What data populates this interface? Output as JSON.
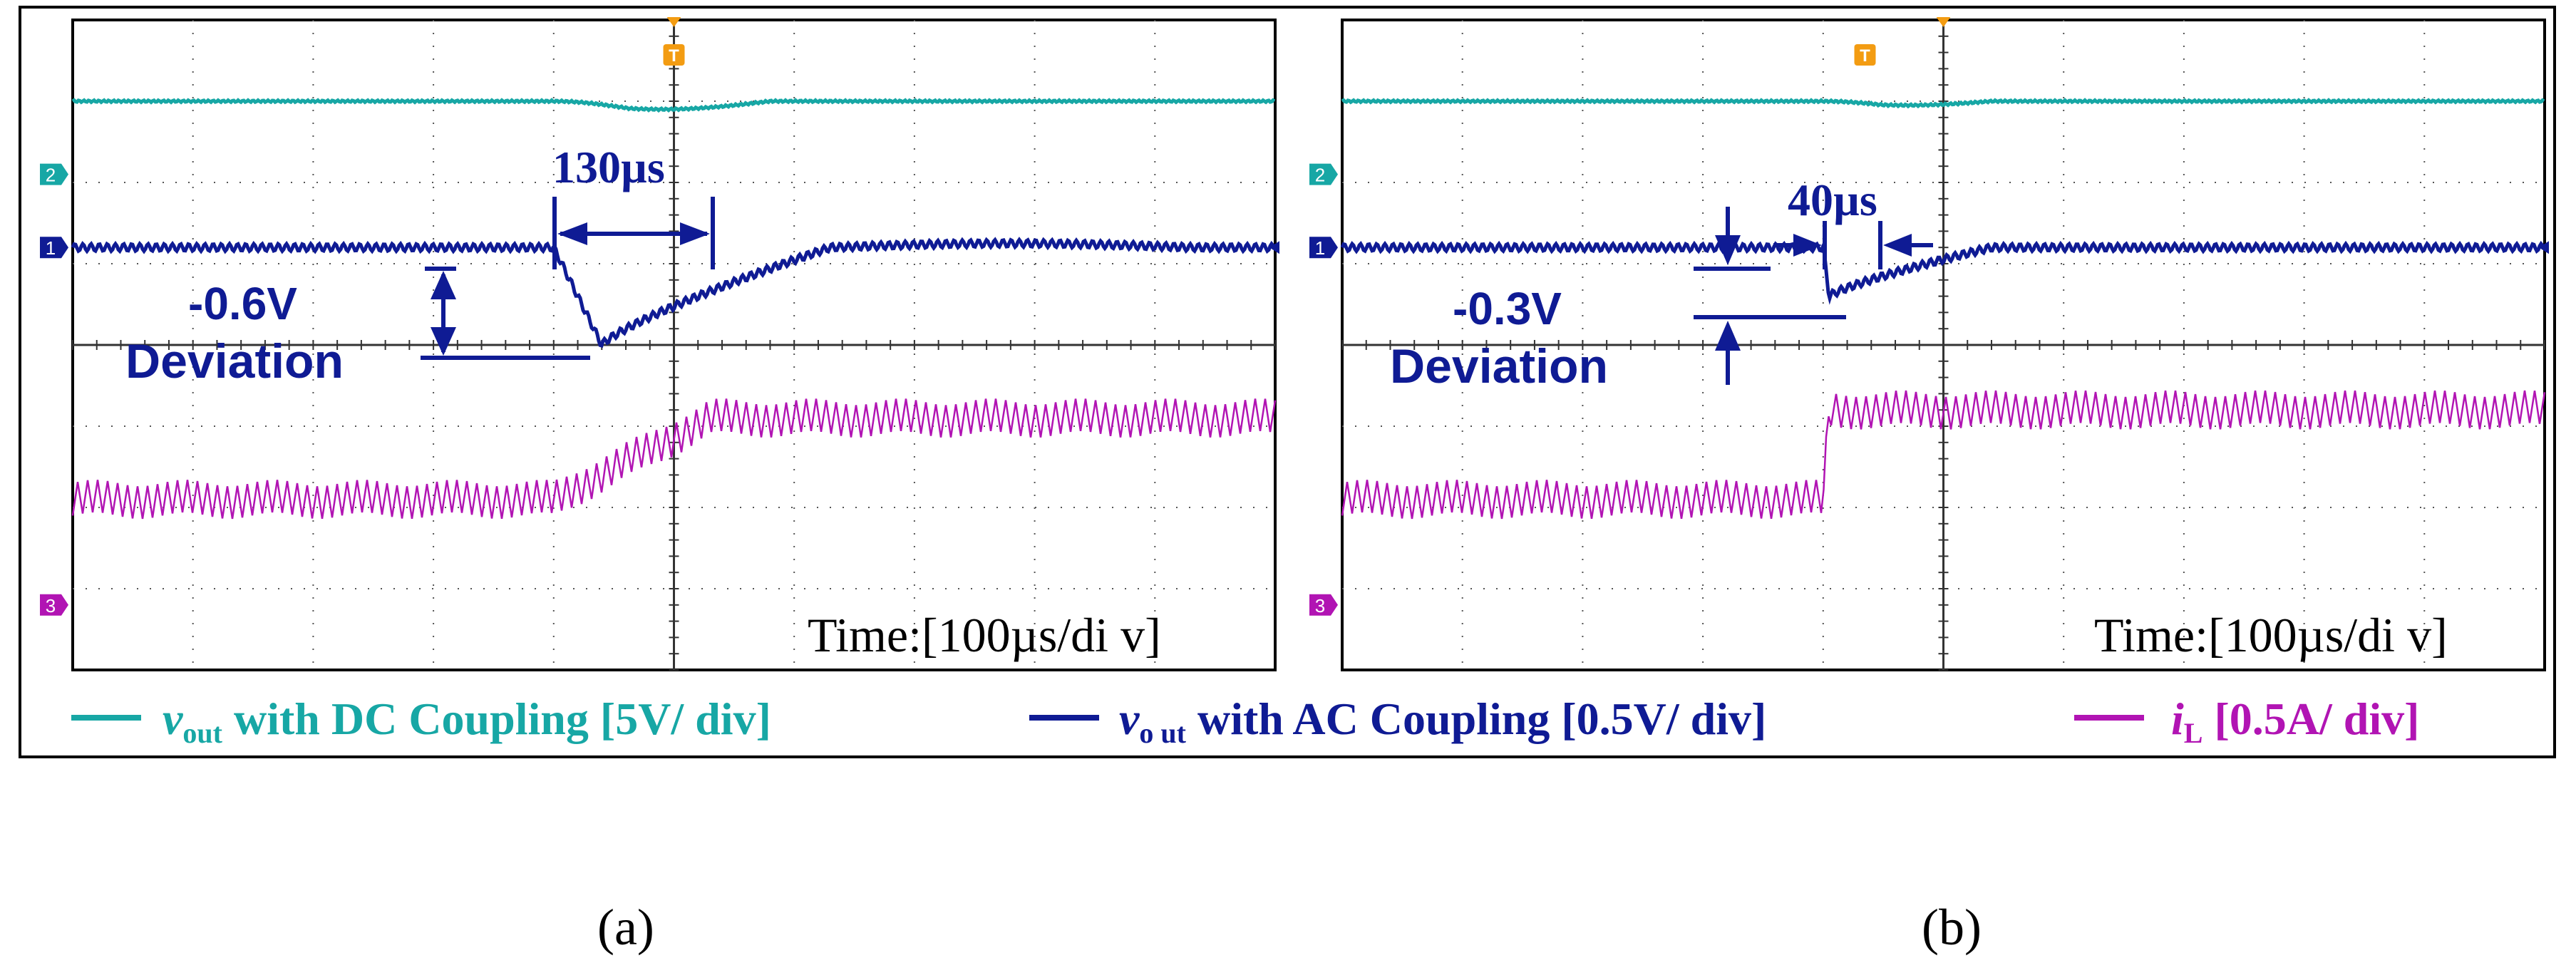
{
  "colors": {
    "dc": "#17a7a5",
    "ac": "#0f1b94",
    "il": "#b114b3",
    "grid": "#555555",
    "trigger": "#f39c12",
    "frame": "#000000"
  },
  "legend": {
    "dc": {
      "var": "v",
      "sub": "out",
      "text": " with DC Coupling [5V/ div]"
    },
    "ac": {
      "var": "v",
      "sub": "o ut",
      "text": " with AC Coupling [0.5V/ div]"
    },
    "il": {
      "var": "i",
      "sub": "L",
      "text": " [0.5A/ div]"
    }
  },
  "channel_markers": [
    "2",
    "1",
    "3"
  ],
  "trigger_marker": "T",
  "chart_data": [
    {
      "type": "line",
      "panel": "a",
      "caption": "(a)",
      "time_label": "Time:[100µs/di v]",
      "x_unit": "µs",
      "x_range": [
        -500,
        500
      ],
      "divisions": {
        "x": 10,
        "y": 8
      },
      "series": [
        {
          "name": "v_out DC coupling",
          "div": "5V/div",
          "level_div": 3.0,
          "dip_div": 0.1,
          "dip_start_us": -100,
          "recovery_us": 80
        },
        {
          "name": "v_out AC coupling",
          "div": "0.5V/div",
          "level_div": 1.2,
          "dip_div": -1.2,
          "dip_start_us": -100,
          "dip_bottom_us": -60,
          "recovery_us": 130,
          "overshoot_div": 0.05
        },
        {
          "name": "i_L",
          "div": "0.5A/div",
          "before_div": -1.9,
          "after_div": -0.9,
          "ripple_div": 0.4,
          "step_start_us": -100,
          "step_end_us": 30
        }
      ],
      "annotations": {
        "deviation_value": "-0.6V",
        "deviation_label": "Deviation",
        "recovery_time": "130µs"
      }
    },
    {
      "type": "line",
      "panel": "b",
      "caption": "(b)",
      "time_label": "Time:[100µs/di v]",
      "x_unit": "µs",
      "x_range": [
        -500,
        500
      ],
      "divisions": {
        "x": 10,
        "y": 8
      },
      "series": [
        {
          "name": "v_out DC coupling",
          "div": "5V/div",
          "level_div": 3.0,
          "dip_div": 0.05,
          "dip_start_us": -100,
          "recovery_us": 40
        },
        {
          "name": "v_out AC coupling",
          "div": "0.5V/div",
          "level_div": 1.2,
          "dip_div": -0.6,
          "dip_start_us": -100,
          "dip_bottom_us": -95,
          "recovery_us": 40,
          "overshoot_div": 0.0
        },
        {
          "name": "i_L",
          "div": "0.5A/div",
          "before_div": -1.9,
          "after_div": -0.8,
          "ripple_div": 0.4,
          "step_start_us": -100,
          "step_end_us": -95
        }
      ],
      "annotations": {
        "deviation_value": "-0.3V",
        "deviation_label": "Deviation",
        "recovery_time": "40µs"
      }
    }
  ]
}
